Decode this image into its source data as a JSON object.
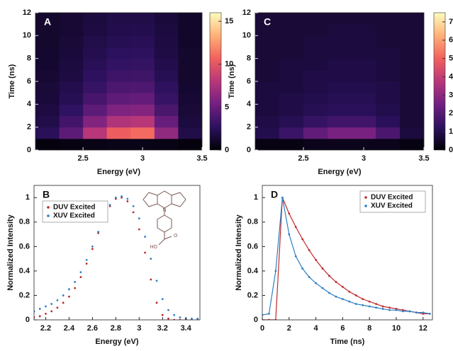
{
  "chart_data": [
    {
      "type": "heatmap",
      "panel": "A",
      "xlabel": "Energy (eV)",
      "ylabel": "Time (ns)",
      "x": [
        2.2,
        2.4,
        2.6,
        2.8,
        3.0,
        3.2,
        3.4
      ],
      "y": [
        0.5,
        1.5,
        2.5,
        3.5,
        4.5,
        5.5,
        6.5,
        7.5,
        8.5,
        9.5,
        10.5,
        11.5
      ],
      "z": [
        [
          0.3,
          0.4,
          0.5,
          0.6,
          0.6,
          0.5,
          0.3
        ],
        [
          2.5,
          4.5,
          8,
          10.5,
          11,
          6.5,
          2
        ],
        [
          2,
          3.5,
          5.9,
          7.7,
          8,
          4.9,
          1.7
        ],
        [
          1.8,
          2.8,
          4.5,
          5.8,
          6,
          3.8,
          1.5
        ],
        [
          1.6,
          2.3,
          3.7,
          4.6,
          4.8,
          3.1,
          1.4
        ],
        [
          1.5,
          2.1,
          3.1,
          3.9,
          4,
          2.7,
          1.3
        ],
        [
          1.4,
          1.8,
          2.7,
          3.3,
          3.4,
          2.3,
          1.2
        ],
        [
          1.3,
          1.7,
          2.4,
          2.9,
          3,
          2.1,
          1.2
        ],
        [
          1.3,
          1.6,
          2.2,
          2.6,
          2.7,
          1.9,
          1.2
        ],
        [
          1.2,
          1.5,
          2,
          2.3,
          2.4,
          1.8,
          1.1
        ],
        [
          1.2,
          1.4,
          1.8,
          2.1,
          2.2,
          1.7,
          1.1
        ],
        [
          1.2,
          1.4,
          1.7,
          2,
          2,
          1.6,
          1.1
        ]
      ],
      "xlim": [
        2.1,
        3.5
      ],
      "xticks": [
        2.5,
        3,
        3.5
      ],
      "ylim": [
        0,
        12
      ],
      "yticks": [
        0,
        2,
        4,
        6,
        8,
        10,
        12
      ],
      "clim": [
        0,
        16
      ],
      "cticks": [
        0,
        5,
        10,
        15
      ],
      "colormap": [
        "#000004",
        "#2c115f",
        "#721f81",
        "#b73779",
        "#f1605d",
        "#feb078",
        "#fcfdbf"
      ]
    },
    {
      "type": "scatter",
      "panel": "B",
      "xlabel": "Energy (eV)",
      "ylabel": "Normalized Intensity",
      "x": [
        2.1,
        2.15,
        2.2,
        2.25,
        2.3,
        2.35,
        2.4,
        2.45,
        2.5,
        2.55,
        2.6,
        2.65,
        2.7,
        2.75,
        2.8,
        2.85,
        2.9,
        2.95,
        3.0,
        3.05,
        3.1,
        3.15,
        3.2,
        3.25,
        3.3,
        3.35,
        3.4,
        3.45,
        3.5
      ],
      "series": [
        {
          "name": "DUV Excited",
          "color": "#c0282a",
          "values": [
            0.02,
            0.03,
            0.05,
            0.07,
            0.1,
            0.14,
            0.19,
            0.26,
            0.35,
            0.46,
            0.58,
            0.71,
            0.83,
            0.93,
            0.99,
            1.0,
            0.97,
            0.88,
            0.74,
            0.55,
            0.33,
            0.14,
            0.04,
            0.01,
            0,
            0,
            0,
            0,
            0
          ]
        },
        {
          "name": "XUV Excited",
          "color": "#2e7fc4",
          "values": [
            0.07,
            0.09,
            0.11,
            0.13,
            0.16,
            0.2,
            0.25,
            0.31,
            0.39,
            0.49,
            0.6,
            0.72,
            0.84,
            0.94,
            1.0,
            1.01,
            0.99,
            0.93,
            0.83,
            0.68,
            0.5,
            0.32,
            0.17,
            0.08,
            0.04,
            0.02,
            0.01,
            0.01,
            0.01
          ]
        }
      ],
      "xlim": [
        2.1,
        3.52
      ],
      "xticks": [
        2.2,
        2.4,
        2.6,
        2.8,
        3,
        3.2,
        3.4
      ],
      "ylim": [
        0,
        1.1
      ],
      "yticks": [
        0,
        0.2,
        0.4,
        0.6,
        0.8,
        1
      ],
      "legend": "upper left",
      "molecule_labels": [
        "N",
        "O",
        "HO"
      ]
    },
    {
      "type": "heatmap",
      "panel": "C",
      "xlabel": "Energy (eV)",
      "ylabel": "Time (ns)",
      "x": [
        2.2,
        2.4,
        2.6,
        2.8,
        3.0,
        3.2,
        3.4
      ],
      "y": [
        0.5,
        1.5,
        2.5,
        3.5,
        4.5,
        5.5,
        6.5,
        7.5,
        8.5,
        9.5,
        10.5,
        11.5
      ],
      "z": [
        [
          0.2,
          0.2,
          0.3,
          0.3,
          0.3,
          0.3,
          0.2
        ],
        [
          1,
          1.5,
          2.2,
          2.6,
          2.6,
          1.8,
          0.8
        ],
        [
          0.9,
          1.1,
          1.4,
          1.6,
          1.6,
          1.2,
          0.7
        ],
        [
          0.8,
          0.9,
          1.1,
          1.2,
          1.2,
          1,
          0.7
        ],
        [
          0.8,
          0.9,
          1,
          1.1,
          1.1,
          0.9,
          0.7
        ],
        [
          0.8,
          0.8,
          0.9,
          1,
          1,
          0.9,
          0.7
        ],
        [
          0.7,
          0.8,
          0.9,
          0.9,
          0.9,
          0.8,
          0.7
        ],
        [
          0.7,
          0.8,
          0.8,
          0.9,
          0.9,
          0.8,
          0.7
        ],
        [
          0.7,
          0.7,
          0.8,
          0.8,
          0.8,
          0.8,
          0.7
        ],
        [
          0.7,
          0.7,
          0.8,
          0.8,
          0.8,
          0.7,
          0.7
        ],
        [
          0.7,
          0.7,
          0.7,
          0.8,
          0.8,
          0.7,
          0.7
        ],
        [
          0.7,
          0.7,
          0.7,
          0.7,
          0.7,
          0.7,
          0.7
        ]
      ],
      "xlim": [
        2.1,
        3.5
      ],
      "xticks": [
        2.5,
        3,
        3.5
      ],
      "ylim": [
        0,
        12
      ],
      "yticks": [
        0,
        2,
        4,
        6,
        8,
        10,
        12
      ],
      "clim": [
        0,
        7.5
      ],
      "cticks": [
        0,
        1,
        2,
        3,
        4,
        5,
        6,
        7
      ],
      "colormap": [
        "#000004",
        "#2c115f",
        "#721f81",
        "#b73779",
        "#f1605d",
        "#feb078",
        "#fcfdbf"
      ]
    },
    {
      "type": "line",
      "panel": "D",
      "xlabel": "Time (ns)",
      "ylabel": "Normalized Intensity",
      "x": [
        0,
        0.5,
        1,
        1.5,
        2,
        2.5,
        3,
        3.5,
        4,
        4.5,
        5,
        5.5,
        6,
        6.5,
        7,
        7.5,
        8,
        8.5,
        9,
        9.5,
        10,
        10.5,
        11,
        11.5,
        12,
        12.5
      ],
      "series": [
        {
          "name": "DUV Excited",
          "color": "#c0282a",
          "values": [
            0,
            0,
            0,
            1.0,
            0.87,
            0.76,
            0.66,
            0.57,
            0.49,
            0.42,
            0.36,
            0.31,
            0.27,
            0.23,
            0.2,
            0.17,
            0.15,
            0.13,
            0.11,
            0.1,
            0.09,
            0.08,
            0.07,
            0.06,
            0.05,
            0.05
          ]
        },
        {
          "name": "XUV Excited",
          "color": "#2e7fc4",
          "values": [
            0.04,
            0.05,
            0.4,
            1.0,
            0.7,
            0.52,
            0.42,
            0.35,
            0.3,
            0.26,
            0.22,
            0.19,
            0.17,
            0.15,
            0.13,
            0.12,
            0.11,
            0.1,
            0.09,
            0.08,
            0.08,
            0.07,
            0.07,
            0.06,
            0.06,
            0.05
          ]
        }
      ],
      "xlim": [
        0,
        12.7
      ],
      "xticks": [
        0,
        2,
        4,
        6,
        8,
        10,
        12
      ],
      "ylim": [
        0,
        1.1
      ],
      "yticks": [
        0,
        0.2,
        0.4,
        0.6,
        0.8,
        1
      ],
      "legend": "upper right"
    }
  ]
}
